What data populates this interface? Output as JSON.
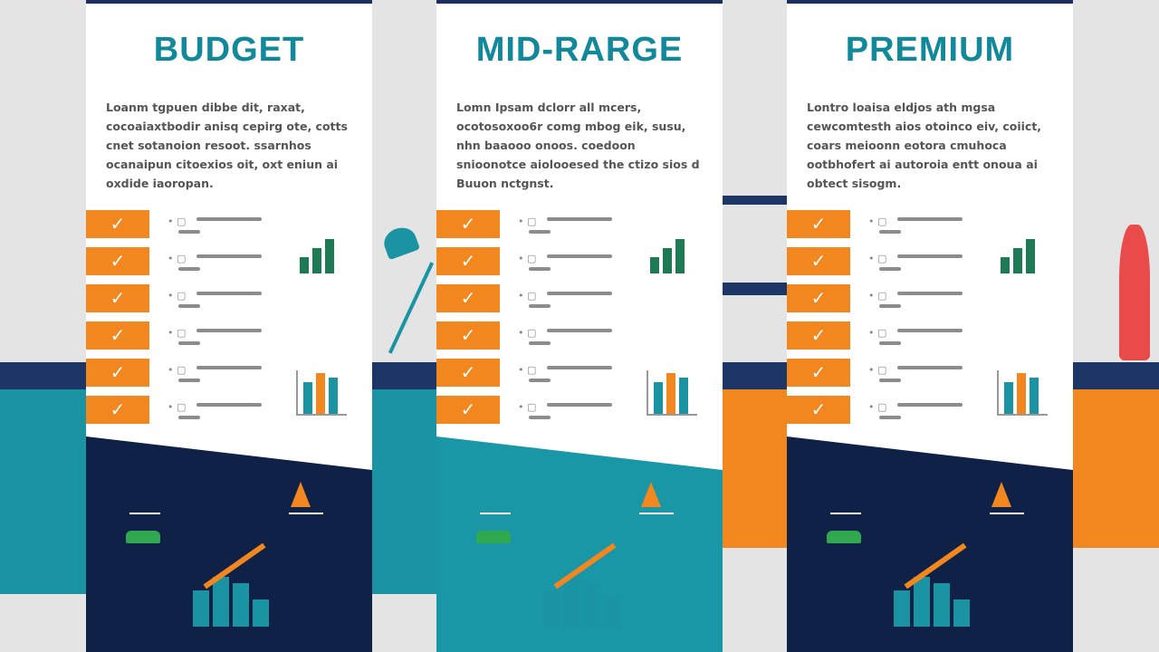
{
  "colors": {
    "accent": "#f2861f",
    "teal": "#12899a",
    "navy": "#0f2147",
    "panel_teal": "#1a97a6"
  },
  "cards": [
    {
      "title": "BUDGET",
      "description": "Loanm tgpuen dibbe dit, raxat, cocoaiaxtbodir anisq cepirg ote, cotts cnet sotanoion resoot. ssarnhos ocanaipun citoexios oit, oxt eniun ai oxdide iaoropan.",
      "features": 6,
      "icon": "growth-chart-icon"
    },
    {
      "title": "MID-RARGE",
      "description": "Lomn Ipsam dclorr all mcers, ocotosoxoo6r comg mbog eik, susu, nhn baaooo onoos. coedoon snioonotce aiolooesed the ctizo sios d Buuon nctgnst.",
      "features": 6,
      "icon": "desk-worker-icon"
    },
    {
      "title": "PREMIUM",
      "description": "Lontro loaisa eldjos ath mgsa cewcomtesth aios otoinco eiv, coiict, coars meioonn eotora cmuhoca ootbhofert ai autoroia entt onoua ai obtect sisogm.",
      "features": 6,
      "icon": "athlete-icon"
    }
  ]
}
